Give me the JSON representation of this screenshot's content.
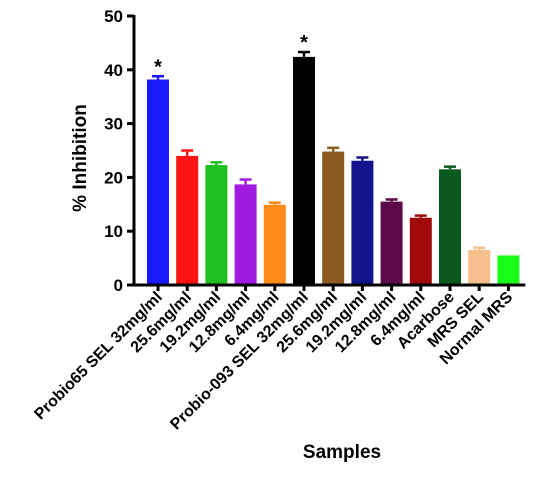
{
  "chart_data": {
    "type": "bar",
    "title": "",
    "xlabel": "Samples",
    "ylabel": "% Inhibition",
    "ylim": [
      0,
      50
    ],
    "yticks": [
      0,
      10,
      20,
      30,
      40,
      50
    ],
    "grid": false,
    "legend": "none",
    "categories": [
      "Probio65 SEL 32mg/ml",
      "25.6mg/ml",
      "19.2mg/ml",
      "12.8mg/ml",
      "6.4mg/ml",
      "Probio-093 SEL 32mg/ml",
      "25.6mg/ml",
      "19.2mg/ml",
      "12.8mg/ml",
      "6.4mg/ml",
      "Acarbose",
      "MRS SEL",
      "Normal MRS"
    ],
    "values": [
      38.2,
      24.0,
      22.3,
      18.7,
      14.9,
      42.4,
      24.8,
      23.1,
      15.5,
      12.5,
      21.5,
      6.5,
      5.5
    ],
    "errors": [
      0.6,
      1.0,
      0.5,
      0.9,
      0.4,
      0.9,
      0.7,
      0.6,
      0.4,
      0.4,
      0.5,
      0.4,
      0.0
    ],
    "colors": [
      "#1a1aff",
      "#ff1414",
      "#1fbf1f",
      "#a11ae0",
      "#ff8a1a",
      "#000000",
      "#8c5a1e",
      "#12128c",
      "#5c0a4a",
      "#a00a0a",
      "#0a5a1e",
      "#f5c08c",
      "#1aff1a"
    ],
    "annotations": [
      {
        "index": 0,
        "text": "*"
      },
      {
        "index": 5,
        "text": "*"
      }
    ]
  }
}
